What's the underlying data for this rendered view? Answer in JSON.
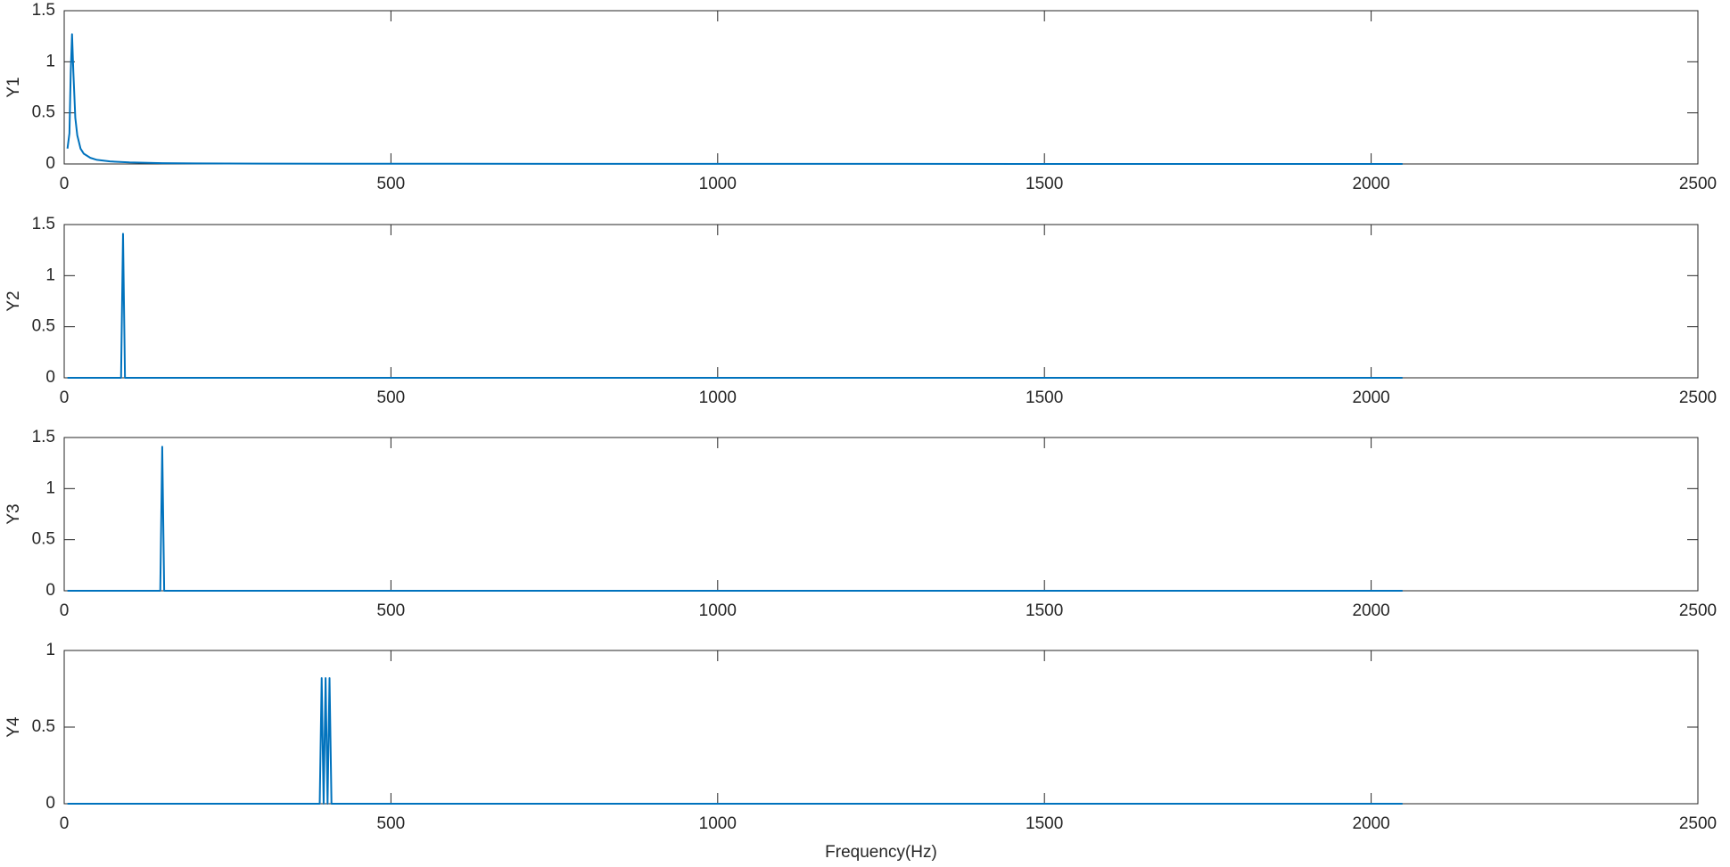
{
  "chart_data": [
    {
      "type": "line",
      "ylabel": "Y1",
      "color": "#0072bd",
      "x": [
        5,
        8,
        10,
        12,
        14,
        17,
        20,
        25,
        30,
        40,
        50,
        70,
        100,
        150,
        200,
        300,
        500,
        1000,
        2048
      ],
      "values": [
        0.15,
        0.3,
        0.9,
        1.27,
        0.9,
        0.45,
        0.28,
        0.15,
        0.1,
        0.06,
        0.04,
        0.025,
        0.015,
        0.008,
        0.005,
        0.003,
        0.002,
        0.001,
        0
      ],
      "xlim": [
        0,
        2500
      ],
      "ylim": [
        0,
        1.5
      ],
      "xticks": [
        0,
        500,
        1000,
        1500,
        2000,
        2500
      ],
      "yticks": [
        0,
        0.5,
        1,
        1.5
      ],
      "grid": false
    },
    {
      "type": "line",
      "ylabel": "Y2",
      "color": "#0072bd",
      "x": [
        5,
        87,
        90,
        93,
        2048
      ],
      "values": [
        0,
        0,
        1.41,
        0,
        0
      ],
      "xlim": [
        0,
        2500
      ],
      "ylim": [
        0,
        1.5
      ],
      "xticks": [
        0,
        500,
        1000,
        1500,
        2000,
        2500
      ],
      "yticks": [
        0,
        0.5,
        1,
        1.5
      ],
      "grid": false
    },
    {
      "type": "line",
      "ylabel": "Y3",
      "color": "#0072bd",
      "x": [
        5,
        147,
        150,
        153,
        2048
      ],
      "values": [
        0,
        0,
        1.41,
        0,
        0
      ],
      "xlim": [
        0,
        2500
      ],
      "ylim": [
        0,
        1.5
      ],
      "xticks": [
        0,
        500,
        1000,
        1500,
        2000,
        2500
      ],
      "yticks": [
        0,
        0.5,
        1,
        1.5
      ],
      "grid": false
    },
    {
      "type": "line",
      "ylabel": "Y4",
      "xlabel": "Frequency(Hz)",
      "color": "#0072bd",
      "x": [
        5,
        391,
        394,
        397,
        400,
        403,
        406,
        409,
        2048
      ],
      "values": [
        0,
        0,
        0.82,
        0,
        0.82,
        0,
        0.82,
        0,
        0
      ],
      "xlim": [
        0,
        2500
      ],
      "ylim": [
        0,
        1
      ],
      "xticks": [
        0,
        500,
        1000,
        1500,
        2000,
        2500
      ],
      "yticks": [
        0,
        0.5,
        1
      ],
      "grid": false
    }
  ]
}
